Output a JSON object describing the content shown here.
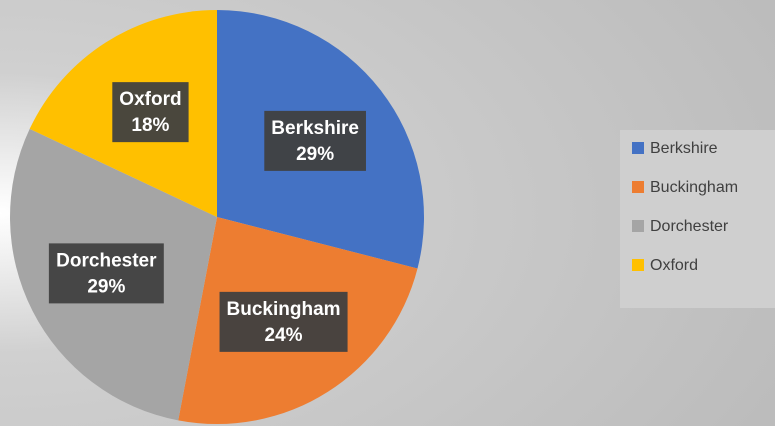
{
  "chart_data": {
    "type": "pie",
    "categories": [
      "Berkshire",
      "Buckingham",
      "Dorchester",
      "Oxford"
    ],
    "values": [
      29,
      24,
      29,
      18
    ],
    "value_labels": [
      "29%",
      "24%",
      "29%",
      "18%"
    ],
    "colors": [
      "#4472c4",
      "#ed7d31",
      "#a5a5a5",
      "#ffc000"
    ],
    "legend": "right"
  }
}
